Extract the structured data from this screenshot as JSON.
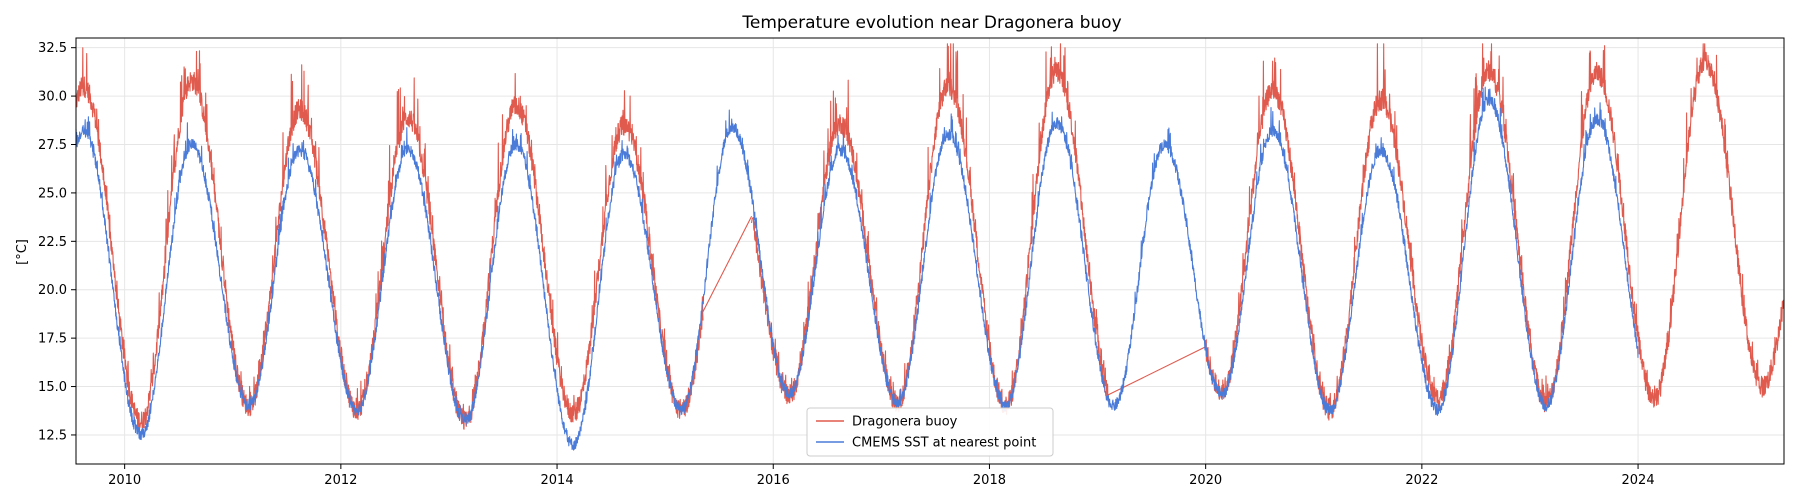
{
  "chart_data": {
    "type": "line",
    "title": "Temperature evolution near Dragonera buoy",
    "xlabel": "",
    "ylabel": "[°C]",
    "xlim": [
      2009.55,
      2025.35
    ],
    "ylim": [
      11.0,
      33.0
    ],
    "x_ticks": [
      2010,
      2012,
      2014,
      2016,
      2018,
      2020,
      2022,
      2024
    ],
    "x_tick_labels": [
      "2010",
      "2012",
      "2014",
      "2016",
      "2018",
      "2020",
      "2022",
      "2024"
    ],
    "y_ticks": [
      12.5,
      15.0,
      17.5,
      20.0,
      22.5,
      25.0,
      27.5,
      30.0,
      32.5
    ],
    "y_tick_labels": [
      "12.5",
      "15.0",
      "17.5",
      "20.0",
      "22.5",
      "25.0",
      "27.5",
      "30.0",
      "32.5"
    ],
    "grid": true,
    "legend_position": "bottom-center",
    "series": [
      {
        "name": "Dragonera buoy",
        "color": "#e05a4e",
        "segments": [
          {
            "start": 2009.55,
            "end": 2014.15
          },
          {
            "start": 2014.15,
            "end": 2015.35
          },
          {
            "start": 2015.35,
            "end": 2015.8,
            "interpolated": true
          },
          {
            "start": 2015.8,
            "end": 2019.1
          },
          {
            "start": 2019.1,
            "end": 2020.0,
            "interpolated": true
          },
          {
            "start": 2020.0,
            "end": 2025.35
          }
        ],
        "annual_pattern": {
          "peak_time": "mid-August",
          "trough_time": "late February",
          "peaks": [
            {
              "year": 2009,
              "value": 30.5
            },
            {
              "year": 2010,
              "value": 30.8
            },
            {
              "year": 2011,
              "value": 29.3
            },
            {
              "year": 2012,
              "value": 28.9
            },
            {
              "year": 2013,
              "value": 29.5
            },
            {
              "year": 2014,
              "value": 28.5
            },
            {
              "year": 2016,
              "value": 28.6
            },
            {
              "year": 2017,
              "value": 30.5
            },
            {
              "year": 2018,
              "value": 31.3
            },
            {
              "year": 2020,
              "value": 30.3
            },
            {
              "year": 2021,
              "value": 29.8
            },
            {
              "year": 2022,
              "value": 31.3
            },
            {
              "year": 2023,
              "value": 31.2
            },
            {
              "year": 2024,
              "value": 31.8
            }
          ],
          "troughs": [
            {
              "year": 2010,
              "value": 13.2
            },
            {
              "year": 2011,
              "value": 14.0
            },
            {
              "year": 2012,
              "value": 13.8
            },
            {
              "year": 2013,
              "value": 13.2
            },
            {
              "year": 2014,
              "value": 13.6
            },
            {
              "year": 2015,
              "value": 13.8
            },
            {
              "year": 2016,
              "value": 14.6
            },
            {
              "year": 2017,
              "value": 14.2
            },
            {
              "year": 2018,
              "value": 14.0
            },
            {
              "year": 2019,
              "value": 14.2
            },
            {
              "year": 2020,
              "value": 14.8
            },
            {
              "year": 2021,
              "value": 13.8
            },
            {
              "year": 2022,
              "value": 14.4
            },
            {
              "year": 2023,
              "value": 14.2
            },
            {
              "year": 2024,
              "value": 14.4
            },
            {
              "year": 2025,
              "value": 15.0
            }
          ]
        }
      },
      {
        "name": "CMEMS SST at nearest point",
        "color": "#4a7bd8",
        "segments": [
          {
            "start": 2009.55,
            "end": 2024.0
          }
        ],
        "annual_pattern": {
          "peak_time": "mid-August",
          "trough_time": "late February",
          "peaks": [
            {
              "year": 2009,
              "value": 28.2
            },
            {
              "year": 2010,
              "value": 27.5
            },
            {
              "year": 2011,
              "value": 27.2
            },
            {
              "year": 2012,
              "value": 27.2
            },
            {
              "year": 2013,
              "value": 27.5
            },
            {
              "year": 2014,
              "value": 27.0
            },
            {
              "year": 2015,
              "value": 28.4
            },
            {
              "year": 2016,
              "value": 27.2
            },
            {
              "year": 2017,
              "value": 28.0
            },
            {
              "year": 2018,
              "value": 28.6
            },
            {
              "year": 2019,
              "value": 27.5
            },
            {
              "year": 2020,
              "value": 28.2
            },
            {
              "year": 2021,
              "value": 27.2
            },
            {
              "year": 2022,
              "value": 29.8
            },
            {
              "year": 2023,
              "value": 28.8
            }
          ],
          "troughs": [
            {
              "year": 2010,
              "value": 12.5
            },
            {
              "year": 2011,
              "value": 14.0
            },
            {
              "year": 2012,
              "value": 13.8
            },
            {
              "year": 2013,
              "value": 13.2
            },
            {
              "year": 2014,
              "value": 12.0
            },
            {
              "year": 2015,
              "value": 13.8
            },
            {
              "year": 2016,
              "value": 14.6
            },
            {
              "year": 2017,
              "value": 14.2
            },
            {
              "year": 2018,
              "value": 14.0
            },
            {
              "year": 2019,
              "value": 14.0
            },
            {
              "year": 2020,
              "value": 14.6
            },
            {
              "year": 2021,
              "value": 13.8
            },
            {
              "year": 2022,
              "value": 13.8
            },
            {
              "year": 2023,
              "value": 14.0
            }
          ]
        }
      }
    ]
  }
}
